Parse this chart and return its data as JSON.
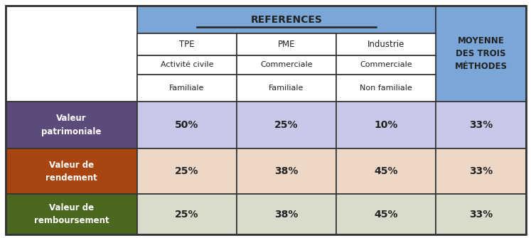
{
  "figsize": [
    7.47,
    3.35
  ],
  "dpi": 100,
  "colors": {
    "blue_header": "#7BA7D8",
    "white": "#FFFFFF",
    "purple_row": "#5B4A7A",
    "orange_row": "#A84510",
    "green_row": "#4A6820",
    "lavender_data": "#C8C8E8",
    "peach_data": "#EDD8C8",
    "sage_data": "#D8DCCA",
    "border": "#333333",
    "text_dark": "#222222",
    "text_white": "#FFFFFF"
  },
  "header_col4": "MOYENNE\nDES TROIS\nMÉTHODES",
  "sub_headers": [
    {
      "r1": "TPE",
      "r2": "Activité civile",
      "r3": "Familiale"
    },
    {
      "r1": "PME",
      "r2": "Commerciale",
      "r3": "Familiale"
    },
    {
      "r1": "Industrie",
      "r2": "Commerciale",
      "r3": "Non familiale"
    }
  ],
  "rows": [
    {
      "label": "Valeur\npatrimoniale",
      "label_color": "#5B4A7A",
      "data_color": "#C8C8E8",
      "values": [
        "50%",
        "25%",
        "10%",
        "33%"
      ]
    },
    {
      "label": "Valeur de\nrendement",
      "label_color": "#A84510",
      "data_color": "#EDD8C8",
      "values": [
        "25%",
        "38%",
        "45%",
        "33%"
      ]
    },
    {
      "label": "Valeur de\nremboursement",
      "label_color": "#4A6820",
      "data_color": "#D8DCCA",
      "values": [
        "25%",
        "38%",
        "45%",
        "33%"
      ]
    }
  ]
}
